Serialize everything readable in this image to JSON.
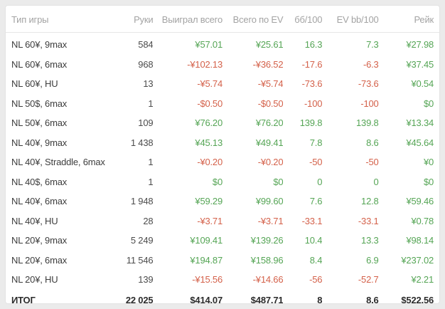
{
  "colors": {
    "positive": "#55a555",
    "negative": "#d4614a",
    "header_text": "#a3a3a3",
    "row_text": "#3d3d3d",
    "card_background": "#ffffff",
    "page_background": "#ebebeb"
  },
  "table": {
    "columns": [
      {
        "key": "game-type",
        "label": "Тип игры"
      },
      {
        "key": "hands",
        "label": "Руки"
      },
      {
        "key": "won-total",
        "label": "Выиграл всего"
      },
      {
        "key": "total-ev",
        "label": "Всего по EV"
      },
      {
        "key": "bb100",
        "label": "бб/100"
      },
      {
        "key": "ev-bb100",
        "label": "EV bb/100"
      },
      {
        "key": "rake",
        "label": "Рейк"
      }
    ],
    "rows": [
      {
        "cells": [
          "NL 60¥, 9max",
          "584",
          "¥57.01",
          "¥25.61",
          "16.3",
          "7.3",
          "¥27.98"
        ],
        "colors": [
          null,
          null,
          "g",
          "g",
          "g",
          "g",
          "g"
        ]
      },
      {
        "cells": [
          "NL 60¥, 6max",
          "968",
          "-¥102.13",
          "-¥36.52",
          "-17.6",
          "-6.3",
          "¥37.45"
        ],
        "colors": [
          null,
          null,
          "r",
          "r",
          "r",
          "r",
          "g"
        ]
      },
      {
        "cells": [
          "NL 60¥, HU",
          "13",
          "-¥5.74",
          "-¥5.74",
          "-73.6",
          "-73.6",
          "¥0.54"
        ],
        "colors": [
          null,
          null,
          "r",
          "r",
          "r",
          "r",
          "g"
        ]
      },
      {
        "cells": [
          "NL 50$, 6max",
          "1",
          "-$0.50",
          "-$0.50",
          "-100",
          "-100",
          "$0"
        ],
        "colors": [
          null,
          null,
          "r",
          "r",
          "r",
          "r",
          "g"
        ]
      },
      {
        "cells": [
          "NL 50¥, 6max",
          "109",
          "¥76.20",
          "¥76.20",
          "139.8",
          "139.8",
          "¥13.34"
        ],
        "colors": [
          null,
          null,
          "g",
          "g",
          "g",
          "g",
          "g"
        ]
      },
      {
        "cells": [
          "NL 40¥, 9max",
          "1 438",
          "¥45.13",
          "¥49.41",
          "7.8",
          "8.6",
          "¥45.64"
        ],
        "colors": [
          null,
          null,
          "g",
          "g",
          "g",
          "g",
          "g"
        ]
      },
      {
        "cells": [
          "NL 40¥, Straddle, 6max",
          "1",
          "-¥0.20",
          "-¥0.20",
          "-50",
          "-50",
          "¥0"
        ],
        "colors": [
          null,
          null,
          "r",
          "r",
          "r",
          "r",
          "g"
        ]
      },
      {
        "cells": [
          "NL 40$, 6max",
          "1",
          "$0",
          "$0",
          "0",
          "0",
          "$0"
        ],
        "colors": [
          null,
          null,
          "g",
          "g",
          "g",
          "g",
          "g"
        ]
      },
      {
        "cells": [
          "NL 40¥, 6max",
          "1 948",
          "¥59.29",
          "¥99.60",
          "7.6",
          "12.8",
          "¥59.46"
        ],
        "colors": [
          null,
          null,
          "g",
          "g",
          "g",
          "g",
          "g"
        ]
      },
      {
        "cells": [
          "NL 40¥, HU",
          "28",
          "-¥3.71",
          "-¥3.71",
          "-33.1",
          "-33.1",
          "¥0.78"
        ],
        "colors": [
          null,
          null,
          "r",
          "r",
          "r",
          "r",
          "g"
        ]
      },
      {
        "cells": [
          "NL 20¥, 9max",
          "5 249",
          "¥109.41",
          "¥139.26",
          "10.4",
          "13.3",
          "¥98.14"
        ],
        "colors": [
          null,
          null,
          "g",
          "g",
          "g",
          "g",
          "g"
        ]
      },
      {
        "cells": [
          "NL 20¥, 6max",
          "11 546",
          "¥194.87",
          "¥158.96",
          "8.4",
          "6.9",
          "¥237.02"
        ],
        "colors": [
          null,
          null,
          "g",
          "g",
          "g",
          "g",
          "g"
        ]
      },
      {
        "cells": [
          "NL 20¥, HU",
          "139",
          "-¥15.56",
          "-¥14.66",
          "-56",
          "-52.7",
          "¥2.21"
        ],
        "colors": [
          null,
          null,
          "r",
          "r",
          "r",
          "r",
          "g"
        ]
      },
      {
        "cells": [
          "ИТОГ",
          "22 025",
          "$414.07",
          "$487.71",
          "8",
          "8.6",
          "$522.56"
        ],
        "colors": [
          null,
          null,
          "g",
          "g",
          "g",
          "g",
          "g"
        ],
        "bold": true
      }
    ]
  }
}
